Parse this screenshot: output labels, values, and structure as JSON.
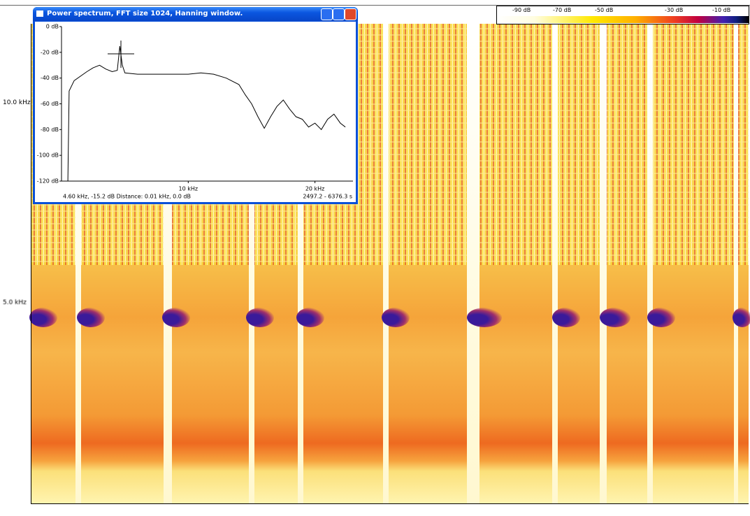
{
  "window": {
    "title": "Power spectrum, FFT size 1024, Hanning window."
  },
  "power_spectrum": {
    "type": "line",
    "x": [
      0.5,
      0.6,
      1,
      2,
      2.5,
      3,
      3.5,
      4,
      4.4,
      4.6,
      4.8,
      5,
      6,
      8,
      10,
      11,
      12,
      13,
      14,
      14.5,
      15,
      15.5,
      16,
      16.5,
      17,
      17.5,
      18,
      18.5,
      19,
      19.5,
      20,
      20.5,
      21,
      21.5,
      22,
      22.4
    ],
    "y": [
      -120,
      -50,
      -42,
      -35,
      -32,
      -30,
      -33,
      -35,
      -34,
      -15.2,
      -30,
      -36,
      -37,
      -37,
      -37,
      -36,
      -37,
      -40,
      -45,
      -53,
      -60,
      -70,
      -79,
      -70,
      -62,
      -57,
      -64,
      -70,
      -72,
      -78,
      -75,
      -80,
      -72,
      -68,
      -75,
      -78
    ],
    "color": "#000000",
    "xlim": [
      0,
      23
    ],
    "ylim": [
      -120,
      0
    ],
    "xticks": [
      {
        "value": 10,
        "label": "10 kHz"
      },
      {
        "value": 20,
        "label": "20 kHz"
      }
    ],
    "yticks": [
      {
        "value": 0,
        "label": "0 dB"
      },
      {
        "value": -20,
        "label": "-20 dB"
      },
      {
        "value": -40,
        "label": "-40 dB"
      },
      {
        "value": -60,
        "label": "-60 dB"
      },
      {
        "value": -80,
        "label": "-80 dB"
      },
      {
        "value": -100,
        "label": "-100 dB"
      },
      {
        "value": -120,
        "label": "-120 dB"
      }
    ],
    "status_left": "4.60 kHz, -15.2 dB Distance: 0.01 kHz, 0.0 dB",
    "status_right": "2497.2 - 6376.3 s"
  },
  "spectrogram": {
    "y_labels": [
      "10.0 kHz",
      "5.0 kHz"
    ]
  },
  "color_scale": {
    "labels": [
      "-90 dB",
      "-70 dB",
      "-50 dB",
      "-30 dB",
      "-10 dB"
    ]
  }
}
